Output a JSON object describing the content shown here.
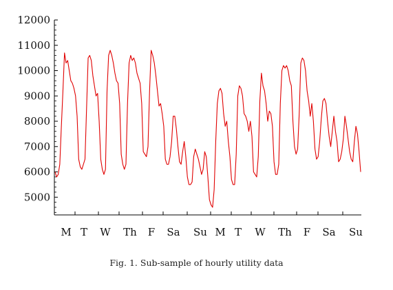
{
  "figure": {
    "caption": "Fig. 1. Sub-sample of hourly utility data"
  },
  "chart_data": {
    "type": "line",
    "title": "",
    "xlabel": "",
    "ylabel": "",
    "ylim": [
      4300,
      12000
    ],
    "y_ticks": [
      5000,
      6000,
      7000,
      8000,
      9000,
      10000,
      11000,
      12000
    ],
    "x_ticks": [
      "M",
      "T",
      "W",
      "Th",
      "F",
      "Sa",
      "Su",
      "M",
      "T",
      "W",
      "Th",
      "F",
      "Sa",
      "Su"
    ],
    "grid": false,
    "line_color": "#e00000",
    "series": [
      {
        "values": [
          6000,
          5800,
          5900,
          6300,
          7800,
          9200,
          10700,
          10300,
          10400,
          10000,
          9600,
          9500,
          9300,
          9000,
          8200,
          6500,
          6200,
          6100,
          6300,
          6500,
          8500,
          10500,
          10600,
          10400,
          9800,
          9400,
          9000,
          9100,
          8000,
          6500,
          6100,
          5900,
          6100,
          9200,
          10600,
          10800,
          10600,
          10300,
          9900,
          9600,
          9500,
          8700,
          6700,
          6300,
          6100,
          6300,
          8700,
          10300,
          10600,
          10400,
          10500,
          10300,
          9900,
          9700,
          9500,
          8700,
          6800,
          6700,
          6600,
          7000,
          9200,
          10800,
          10600,
          10300,
          9800,
          9200,
          8600,
          8700,
          8300,
          7800,
          6500,
          6300,
          6300,
          6600,
          7200,
          8200,
          8200,
          7700,
          7000,
          6400,
          6300,
          6800,
          7200,
          6600,
          5800,
          5500,
          5500,
          5600,
          6600,
          6900,
          6700,
          6500,
          6200,
          5900,
          6100,
          6800,
          6600,
          5800,
          4900,
          4700,
          4600,
          5300,
          7200,
          8700,
          9200,
          9300,
          9100,
          8300,
          7800,
          8000,
          7200,
          6600,
          5700,
          5500,
          5500,
          6700,
          9000,
          9400,
          9300,
          9000,
          8300,
          8200,
          8000,
          7600,
          8000,
          7400,
          6000,
          5900,
          5800,
          6600,
          8800,
          9900,
          9400,
          9200,
          8700,
          8000,
          8400,
          8300,
          7800,
          6400,
          5900,
          5900,
          6300,
          8700,
          10000,
          10200,
          10100,
          10200,
          10000,
          9600,
          9400,
          8000,
          7000,
          6700,
          6900,
          8300,
          10300,
          10500,
          10400,
          10000,
          9200,
          8800,
          8200,
          8700,
          8000,
          6900,
          6500,
          6600,
          7200,
          8100,
          8800,
          8900,
          8700,
          8000,
          7400,
          7000,
          7600,
          8200,
          7600,
          7200,
          6400,
          6500,
          6800,
          7300,
          8200,
          7800,
          7300,
          6800,
          6500,
          6400,
          7200,
          7800,
          7500,
          6800,
          6000
        ]
      }
    ]
  }
}
